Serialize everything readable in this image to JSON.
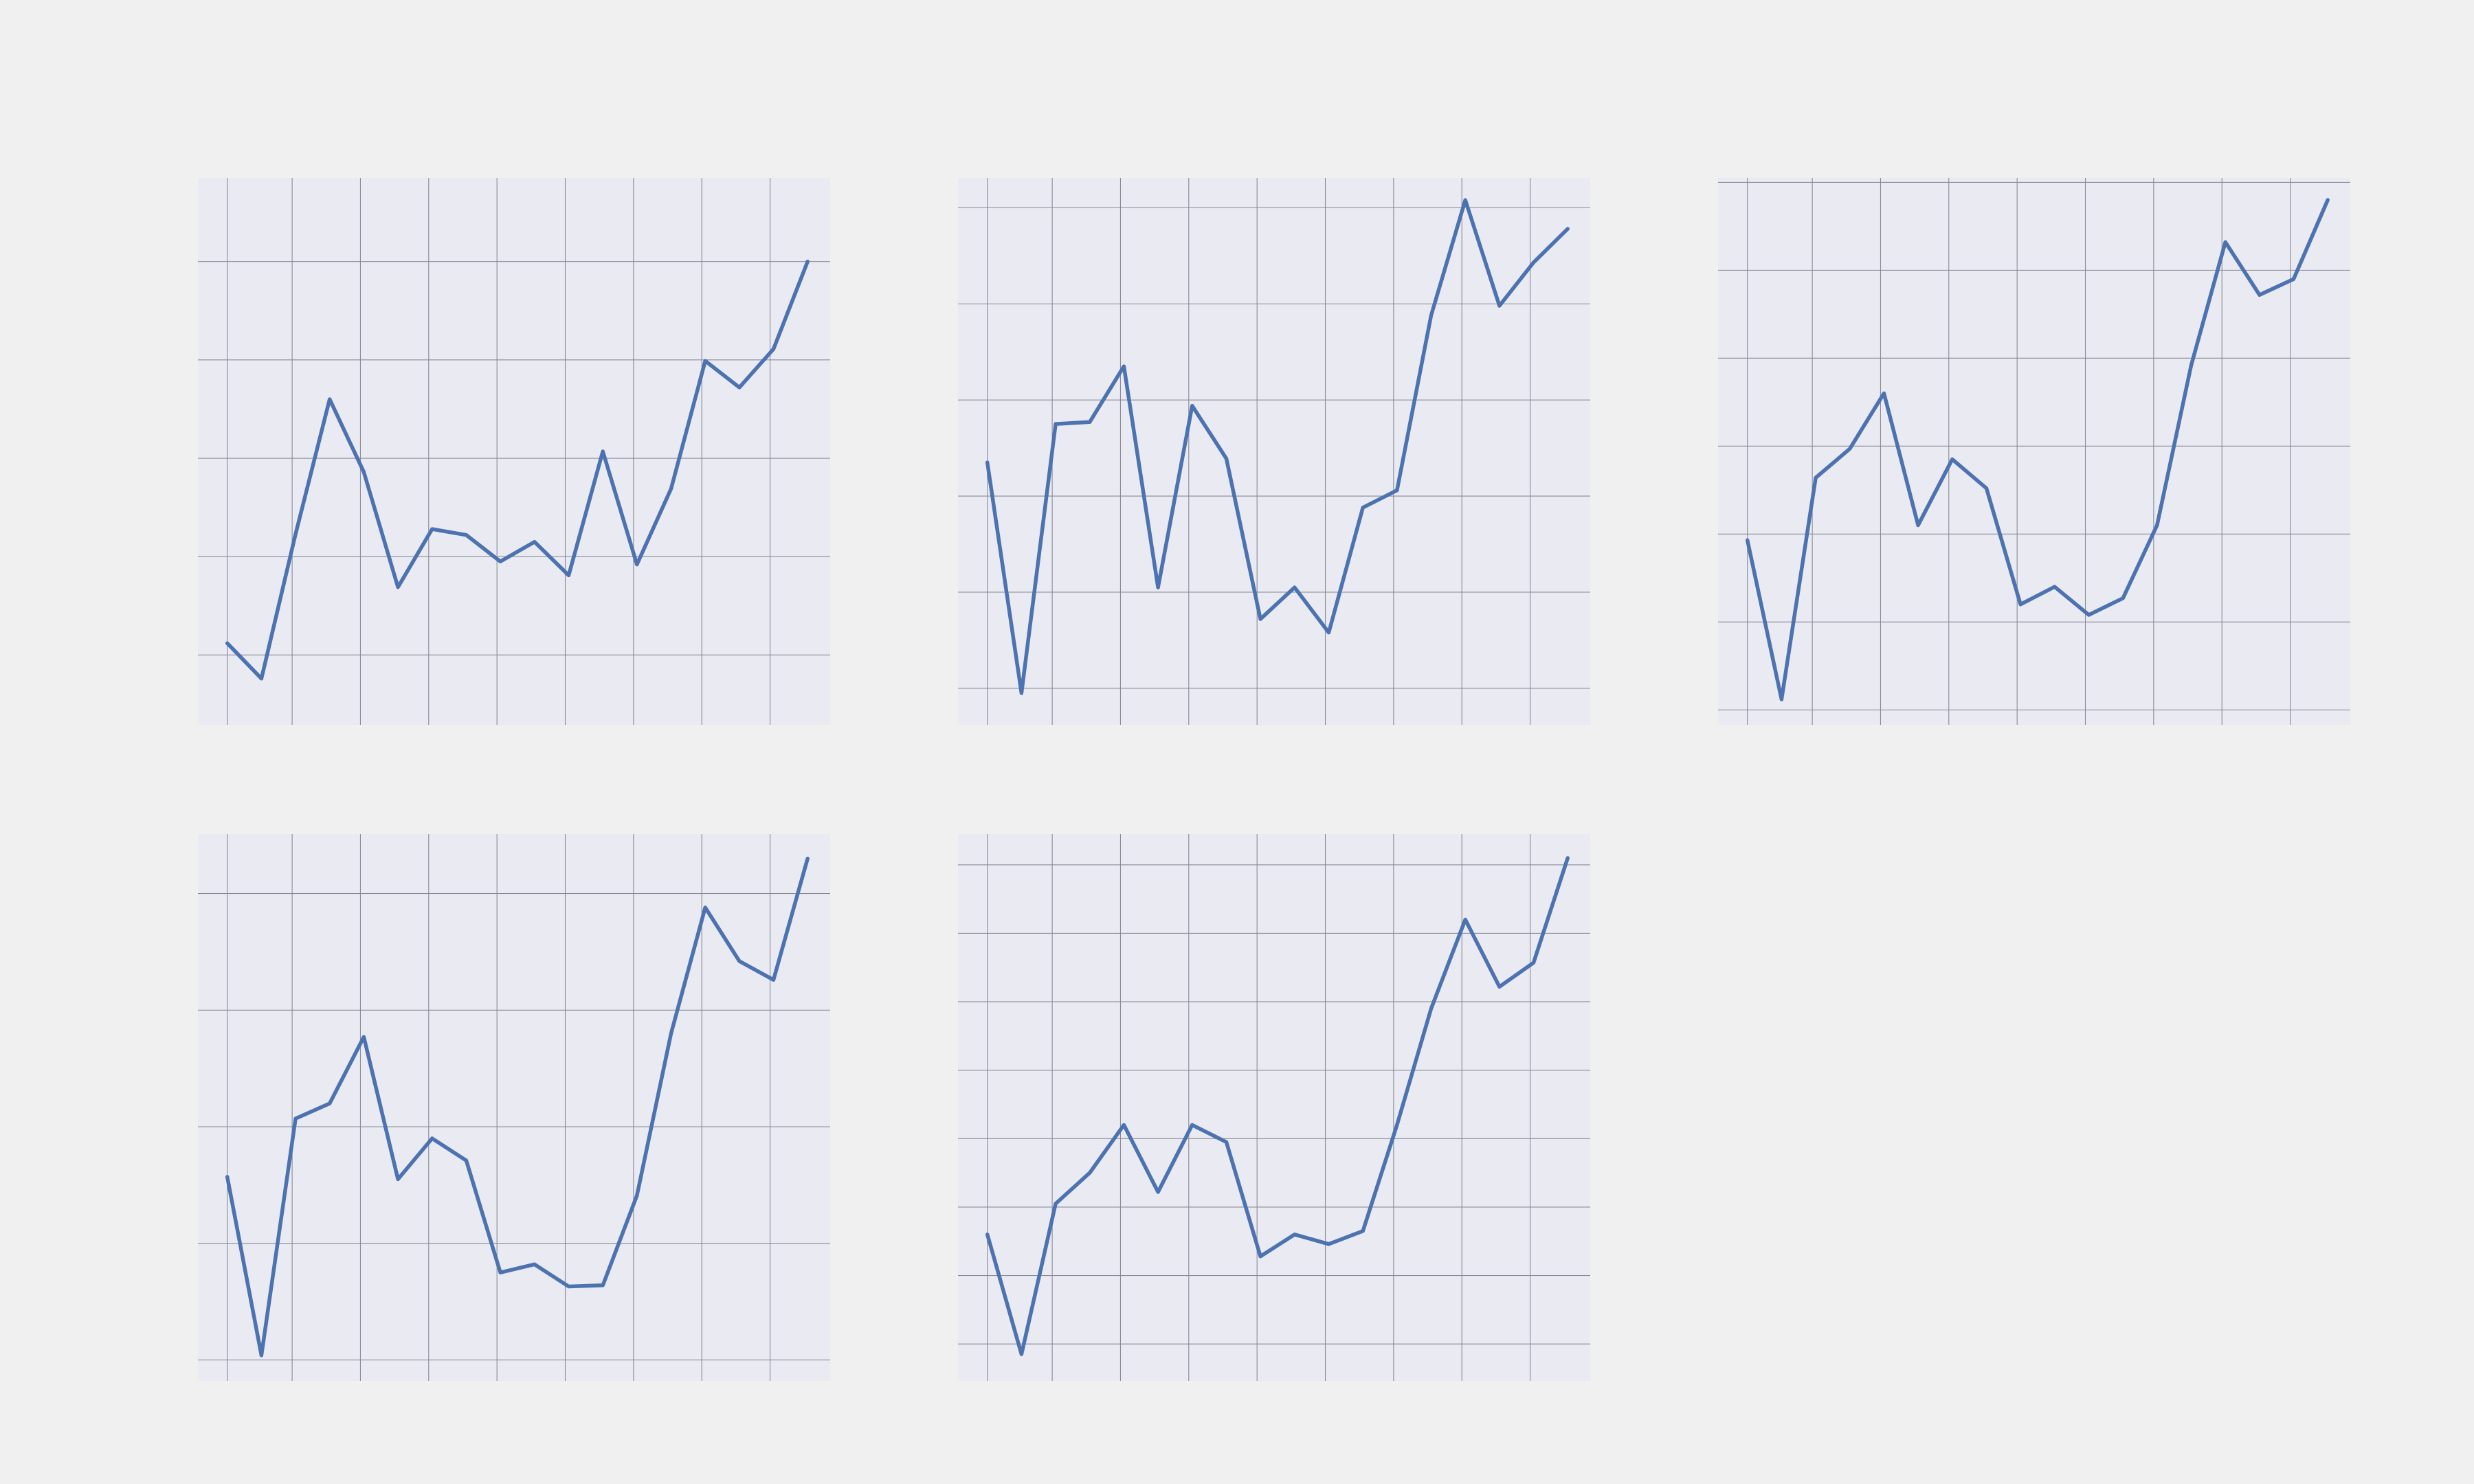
{
  "theme": {
    "figure_background": "#f0f0f0",
    "panel_background": "#eaeaf2",
    "grid_color": "#8a8a96",
    "line_color": "#4c72b0"
  },
  "chart_data": [
    {
      "type": "line",
      "grid": true,
      "x": [
        0,
        1,
        2,
        3,
        4,
        5,
        6,
        7,
        8,
        9,
        10,
        11,
        12,
        13,
        14,
        15,
        16,
        17
      ],
      "xlim": [
        -0.86,
        17.66
      ],
      "ylim": [
        0.29,
        5.85
      ],
      "xgrid": [
        0,
        1.9,
        3.9,
        5.9,
        7.9,
        9.9,
        11.9,
        13.9,
        15.9,
        17.9
      ],
      "ygrid": [
        1,
        2,
        3,
        4,
        5
      ],
      "series": [
        {
          "values": [
            1.12,
            0.76,
            2.23,
            3.6,
            2.86,
            1.69,
            2.28,
            2.22,
            1.95,
            2.15,
            1.81,
            3.07,
            1.92,
            2.69,
            3.99,
            3.72,
            4.11,
            5.0
          ]
        }
      ]
    },
    {
      "type": "line",
      "grid": true,
      "x": [
        0,
        1,
        2,
        3,
        4,
        5,
        6,
        7,
        8,
        9,
        10,
        11,
        12,
        13,
        14,
        15,
        16,
        17
      ],
      "xlim": [
        -0.86,
        17.66
      ],
      "ylim": [
        0.62,
        6.31
      ],
      "xgrid": [
        0,
        1.9,
        3.9,
        5.9,
        7.9,
        9.9,
        11.9,
        13.9,
        15.9,
        17.9
      ],
      "ygrid": [
        1,
        2,
        3,
        4,
        5,
        6
      ],
      "series": [
        {
          "values": [
            3.35,
            0.95,
            3.75,
            3.77,
            4.35,
            2.05,
            3.94,
            3.39,
            1.72,
            2.05,
            1.58,
            2.88,
            3.06,
            4.88,
            6.08,
            4.98,
            5.43,
            5.78
          ]
        }
      ]
    },
    {
      "type": "line",
      "grid": true,
      "x": [
        0,
        1,
        2,
        3,
        4,
        5,
        6,
        7,
        8,
        9,
        10,
        11,
        12,
        13,
        14,
        15,
        16,
        17
      ],
      "xlim": [
        -0.86,
        17.66
      ],
      "ylim": [
        -0.17,
        6.05
      ],
      "xgrid": [
        0,
        1.9,
        3.9,
        5.9,
        7.9,
        9.9,
        11.9,
        13.9,
        15.9,
        17.9
      ],
      "ygrid": [
        0,
        1,
        2,
        3,
        4,
        5,
        6
      ],
      "series": [
        {
          "values": [
            1.93,
            0.12,
            2.64,
            2.97,
            3.6,
            2.1,
            2.85,
            2.52,
            1.2,
            1.4,
            1.08,
            1.27,
            2.1,
            3.92,
            5.32,
            4.72,
            4.9,
            5.8
          ]
        }
      ]
    },
    {
      "type": "line",
      "grid": true,
      "x": [
        0,
        1,
        2,
        3,
        4,
        5,
        6,
        7,
        8,
        9,
        10,
        11,
        12,
        13,
        14,
        15,
        16,
        17
      ],
      "xlim": [
        -0.86,
        17.66
      ],
      "ylim": [
        -0.18,
        4.51
      ],
      "xgrid": [
        0,
        1.9,
        3.9,
        5.9,
        7.9,
        9.9,
        11.9,
        13.9,
        15.9,
        17.9
      ],
      "ygrid": [
        0,
        1,
        2,
        3,
        4
      ],
      "series": [
        {
          "values": [
            1.57,
            0.04,
            2.07,
            2.2,
            2.77,
            1.55,
            1.9,
            1.71,
            0.75,
            0.82,
            0.63,
            0.64,
            1.41,
            2.8,
            3.88,
            3.42,
            3.26,
            4.3
          ]
        }
      ]
    },
    {
      "type": "line",
      "grid": true,
      "x": [
        0,
        1,
        2,
        3,
        4,
        5,
        6,
        7,
        8,
        9,
        10,
        11,
        12,
        13,
        14,
        15,
        16,
        17
      ],
      "xlim": [
        -0.86,
        17.66
      ],
      "ylim": [
        -0.54,
        7.45
      ],
      "xgrid": [
        0,
        1.9,
        3.9,
        5.9,
        7.9,
        9.9,
        11.9,
        13.9,
        15.9,
        17.9
      ],
      "ygrid": [
        0,
        1,
        2,
        3,
        4,
        5,
        6,
        7
      ],
      "series": [
        {
          "values": [
            1.6,
            -0.15,
            2.05,
            2.5,
            3.2,
            2.22,
            3.2,
            2.95,
            1.28,
            1.6,
            1.46,
            1.65,
            3.2,
            4.9,
            6.2,
            5.22,
            5.57,
            7.1
          ]
        }
      ]
    }
  ]
}
